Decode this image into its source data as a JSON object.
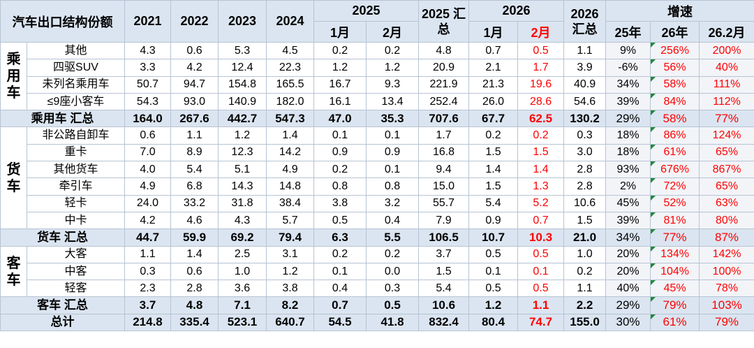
{
  "table": {
    "title": "汽车出口结构份额",
    "years": [
      "2021",
      "2022",
      "2023",
      "2024"
    ],
    "y2025": "2025",
    "sum2025": "2025 汇总",
    "y2026": "2026",
    "sum2026": "2026 汇总",
    "growth": "增速",
    "sub2025": [
      "1月",
      "2月"
    ],
    "sub2026": [
      "1月",
      "2月"
    ],
    "subgrowth": [
      "25年",
      "26年",
      "26.2月"
    ],
    "groups": [
      {
        "label": "乘用车",
        "rows": [
          {
            "name": "其他",
            "cells": [
              "4.3",
              "0.6",
              "5.3",
              "4.5",
              "0.2",
              "0.2",
              "4.8",
              "0.7",
              "0.5",
              "1.1",
              "9%",
              "256%",
              "200%"
            ]
          },
          {
            "name": "四驱SUV",
            "cells": [
              "3.3",
              "4.2",
              "12.4",
              "22.3",
              "1.2",
              "1.2",
              "20.9",
              "2.1",
              "1.7",
              "3.9",
              "-6%",
              "56%",
              "40%"
            ]
          },
          {
            "name": "未列名乘用车",
            "cells": [
              "50.7",
              "94.7",
              "154.8",
              "165.5",
              "16.7",
              "9.3",
              "221.9",
              "21.3",
              "19.6",
              "40.9",
              "34%",
              "58%",
              "111%"
            ]
          },
          {
            "name": "≤9座小客车",
            "cells": [
              "54.3",
              "93.0",
              "140.9",
              "182.0",
              "16.1",
              "13.4",
              "252.4",
              "26.0",
              "28.6",
              "54.6",
              "39%",
              "84%",
              "112%"
            ]
          }
        ],
        "total": {
          "name": "乘用车 汇总",
          "cells": [
            "164.0",
            "267.6",
            "442.7",
            "547.3",
            "47.0",
            "35.3",
            "707.6",
            "67.7",
            "62.5",
            "130.2",
            "29%",
            "58%",
            "77%"
          ]
        }
      },
      {
        "label": "货车",
        "rows": [
          {
            "name": "非公路自卸车",
            "cells": [
              "0.6",
              "1.1",
              "1.2",
              "1.4",
              "0.1",
              "0.1",
              "1.7",
              "0.2",
              "0.2",
              "0.3",
              "18%",
              "86%",
              "124%"
            ]
          },
          {
            "name": "重卡",
            "cells": [
              "7.0",
              "8.9",
              "12.3",
              "14.2",
              "0.9",
              "0.9",
              "16.8",
              "1.5",
              "1.5",
              "3.0",
              "18%",
              "61%",
              "65%"
            ]
          },
          {
            "name": "其他货车",
            "cells": [
              "4.0",
              "5.4",
              "5.1",
              "4.9",
              "0.2",
              "0.1",
              "9.4",
              "1.4",
              "1.4",
              "2.8",
              "93%",
              "676%",
              "867%"
            ]
          },
          {
            "name": "牵引车",
            "cells": [
              "4.9",
              "6.8",
              "14.3",
              "14.8",
              "0.8",
              "0.8",
              "15.0",
              "1.5",
              "1.3",
              "2.8",
              "2%",
              "72%",
              "65%"
            ]
          },
          {
            "name": "轻卡",
            "cells": [
              "24.0",
              "33.2",
              "31.8",
              "38.4",
              "3.8",
              "3.2",
              "55.7",
              "5.4",
              "5.2",
              "10.6",
              "45%",
              "52%",
              "63%"
            ]
          },
          {
            "name": "中卡",
            "cells": [
              "4.2",
              "4.6",
              "4.3",
              "5.7",
              "0.5",
              "0.4",
              "7.9",
              "0.9",
              "0.7",
              "1.5",
              "39%",
              "81%",
              "80%"
            ]
          }
        ],
        "total": {
          "name": "货车 汇总",
          "cells": [
            "44.7",
            "59.9",
            "69.2",
            "79.4",
            "6.3",
            "5.5",
            "106.5",
            "10.7",
            "10.3",
            "21.0",
            "34%",
            "77%",
            "87%"
          ]
        }
      },
      {
        "label": "客车",
        "rows": [
          {
            "name": "大客",
            "cells": [
              "1.1",
              "1.4",
              "2.5",
              "3.1",
              "0.2",
              "0.2",
              "3.7",
              "0.5",
              "0.5",
              "1.0",
              "20%",
              "134%",
              "142%"
            ]
          },
          {
            "name": "中客",
            "cells": [
              "0.3",
              "0.6",
              "1.0",
              "1.2",
              "0.1",
              "0.0",
              "1.5",
              "0.1",
              "0.1",
              "0.2",
              "20%",
              "104%",
              "100%"
            ]
          },
          {
            "name": "轻客",
            "cells": [
              "2.3",
              "2.8",
              "3.6",
              "3.8",
              "0.4",
              "0.3",
              "5.4",
              "0.5",
              "0.5",
              "1.1",
              "40%",
              "45%",
              "78%"
            ]
          }
        ],
        "total": {
          "name": "客车 汇总",
          "cells": [
            "3.7",
            "4.8",
            "7.1",
            "8.2",
            "0.7",
            "0.5",
            "10.6",
            "1.2",
            "1.1",
            "2.2",
            "29%",
            "79%",
            "103%"
          ]
        }
      }
    ],
    "grand_total": {
      "name": "总计",
      "cells": [
        "214.8",
        "335.4",
        "523.1",
        "640.7",
        "54.5",
        "41.8",
        "832.4",
        "80.4",
        "74.7",
        "155.0",
        "30%",
        "61%",
        "79%"
      ]
    }
  }
}
